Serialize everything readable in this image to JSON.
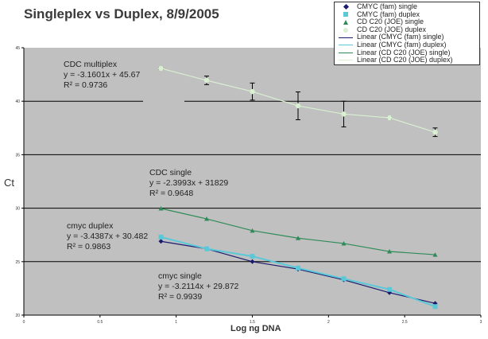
{
  "title": "Singleplex vs Duplex, 8/9/2005",
  "chart_data": {
    "type": "line",
    "title": "Singleplex vs Duplex, 8/9/2005",
    "xlabel": "Log ng DNA",
    "ylabel": "Ct",
    "xlim": [
      0,
      3
    ],
    "ylim": [
      20,
      45
    ],
    "y_reversed": true,
    "xticks": [
      "0",
      "0.5",
      "1",
      "1.5",
      "2",
      "2.5",
      "3"
    ],
    "yticks": [
      "45",
      "40",
      "35",
      "30",
      "25",
      "20"
    ],
    "grid": "horizontal major",
    "plot_background": "#c0c0c0",
    "legend_position": "top-right",
    "x": [
      0.9,
      1.2,
      1.5,
      1.8,
      2.1,
      2.4,
      2.7
    ],
    "series": [
      {
        "name": "CMYC (fam) single",
        "values": [
          26.9,
          26.2,
          25.0,
          24.3,
          23.3,
          22.1,
          21.1
        ],
        "color": "#1a1a6e",
        "marker": "diamond",
        "fit_name": "Linear (CMYC (fam) single)"
      },
      {
        "name": "CMYC (fam) duplex",
        "values": [
          27.3,
          26.2,
          25.5,
          24.4,
          23.4,
          22.4,
          20.8
        ],
        "color": "#5bc8d8",
        "marker": "square",
        "fit_name": "Linear (CMYC (fam) duplex)"
      },
      {
        "name": "CD C20 (JOE) single",
        "values": [
          29.97,
          29.0,
          27.9,
          27.2,
          26.7,
          25.95,
          25.65
        ],
        "color": "#2e8b57",
        "marker": "triangle",
        "fit_name": "Linear (CD C20 (JOE) single)"
      },
      {
        "name": "CD C20 (JOE) duplex",
        "values": [
          43.07,
          41.95,
          40.9,
          39.57,
          38.8,
          38.45,
          37.1
        ],
        "color": "#d8f0d0",
        "marker": "circle",
        "fit_name": "Linear (CD C20 (JOE) duplex)",
        "error": [
          0.1,
          0.4,
          0.8,
          1.3,
          1.2,
          0.1,
          0.4
        ]
      }
    ],
    "annotations": [
      {
        "label": "CDC multiplex",
        "equation": "y = -3.1601x + 45.67",
        "r2": "R² = 0.9736"
      },
      {
        "label": "CDC single",
        "equation": "y = -2.3993x + 31829",
        "r2": "R² = 0.9648"
      },
      {
        "label": "cmyc duplex",
        "equation": "y = -3.4387x + 30.482",
        "r2": "R² = 0.9863"
      },
      {
        "label": "cmyc single",
        "equation": "y = -3.2114x + 29.872",
        "r2": "R² = 0.9939"
      }
    ]
  }
}
